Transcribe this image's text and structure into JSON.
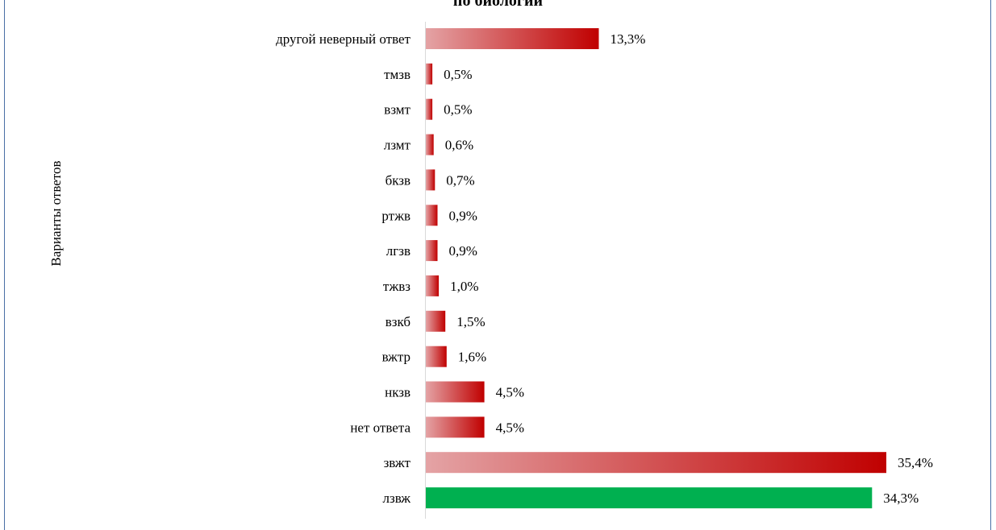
{
  "chart_data": {
    "type": "bar",
    "orientation": "horizontal",
    "title": "по биологии",
    "ylabel": "Варианты ответов",
    "categories": [
      "другой неверный ответ",
      "тмзв",
      "взмт",
      "лзмт",
      "бкзв",
      "ртжв",
      "лгзв",
      "тжвз",
      "взкб",
      "вжтр",
      "нкзв",
      "нет ответа",
      "звжт",
      "лзвж"
    ],
    "values": [
      13.3,
      0.5,
      0.5,
      0.6,
      0.7,
      0.9,
      0.9,
      1.0,
      1.5,
      1.6,
      4.5,
      4.5,
      35.4,
      34.3
    ],
    "value_labels": [
      "13,3%",
      "0,5%",
      "0,5%",
      "0,6%",
      "0,7%",
      "0,9%",
      "0,9%",
      "1,0%",
      "1,5%",
      "1,6%",
      "4,5%",
      "4,5%",
      "35,4%",
      "34,3%"
    ],
    "correct_index": 13,
    "xlim": [
      0,
      35.4
    ],
    "grid": false,
    "colors": {
      "gradient_start": "#e4a3a5",
      "gradient_end": "#c00000",
      "correct": "#00b050",
      "border": "#4a6fa5"
    }
  }
}
